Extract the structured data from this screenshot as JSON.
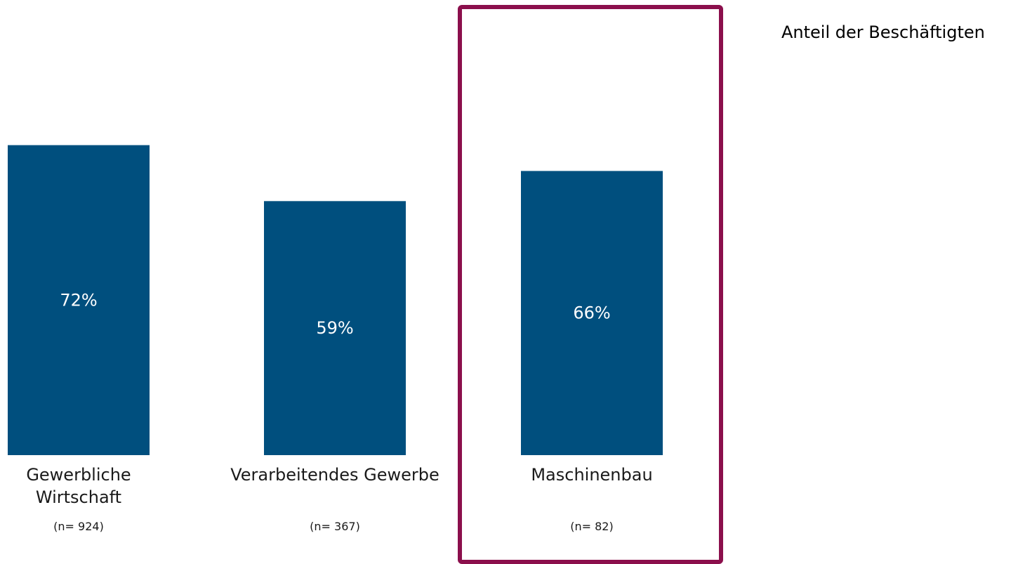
{
  "chart_data": {
    "type": "bar",
    "categories": [
      [
        "Gewerbliche",
        "Wirtschaft"
      ],
      [
        "Verarbeitendes Gewerbe"
      ],
      [
        "Maschinenbau"
      ]
    ],
    "sample_sizes": [
      "(n= 924)",
      "(n= 367)",
      "(n= 82)"
    ],
    "values": [
      72,
      59,
      66
    ],
    "value_labels": [
      "72%",
      "59%",
      "66%"
    ],
    "series": [
      {
        "name": "Anteil der Beschäftigten",
        "values": [
          72,
          59,
          66
        ]
      }
    ],
    "legend": "Anteil der Beschäftigten",
    "legend_position": "top-right",
    "highlighted_category": "Maschinenbau",
    "ylim": [
      0,
      100
    ],
    "grid": false,
    "title": "",
    "xlabel": "",
    "ylabel": ""
  },
  "colors": {
    "bar": "#004f7e",
    "highlight": "#8b0f4c"
  }
}
